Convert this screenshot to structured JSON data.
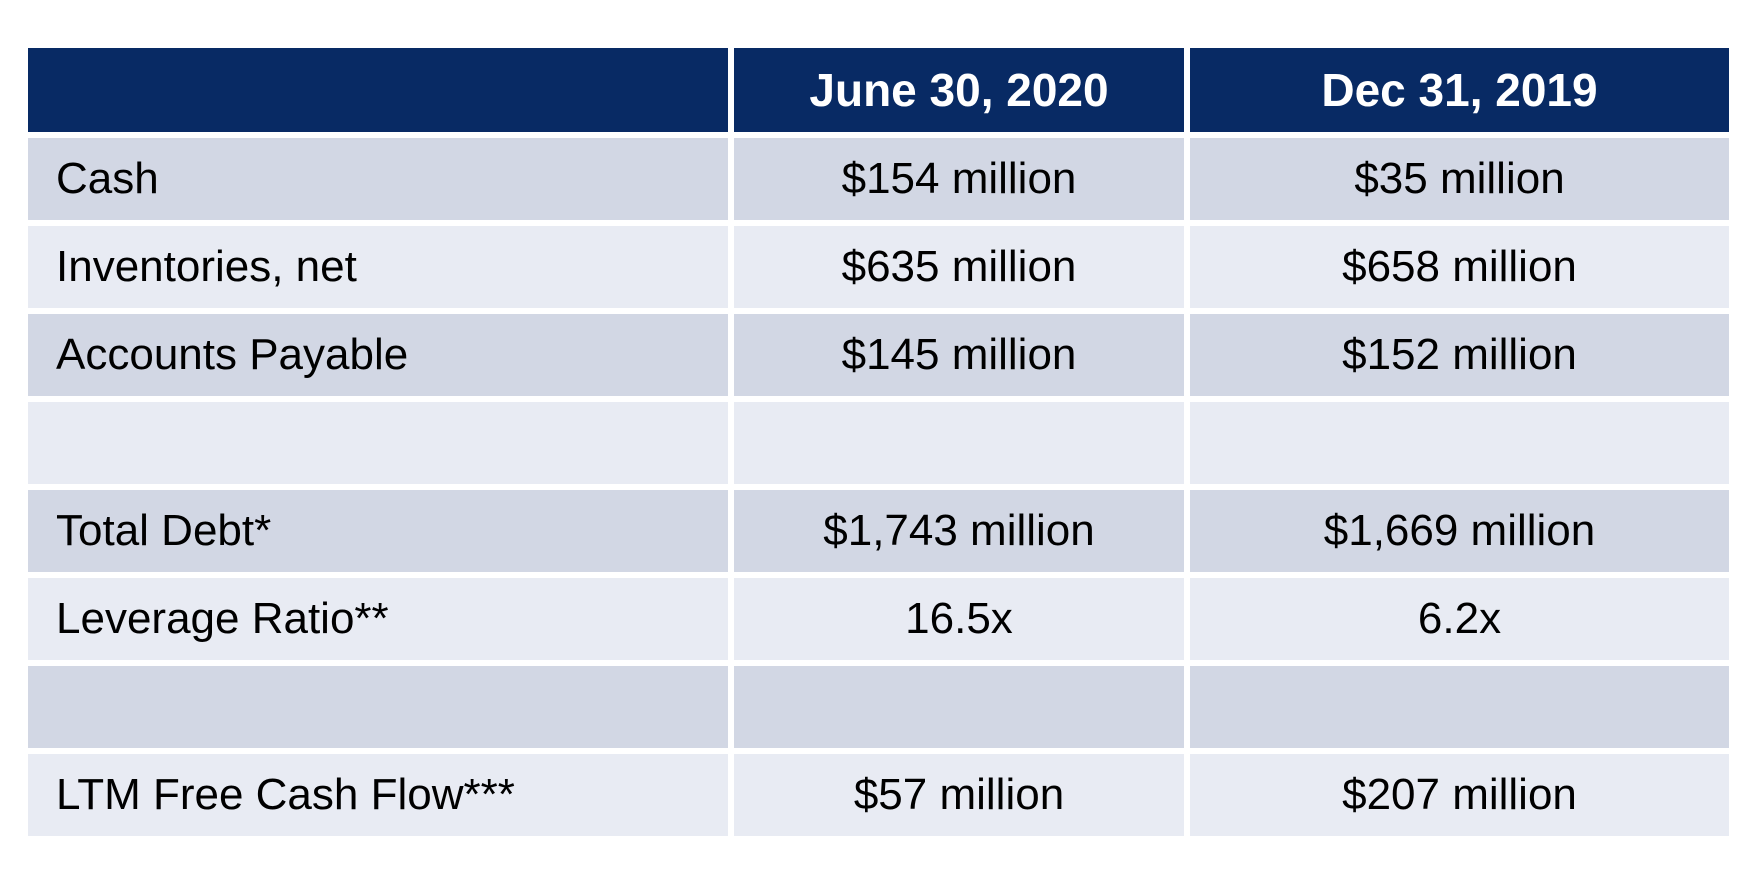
{
  "table": {
    "header_cells": {
      "col0": "",
      "col1": "June 30, 2020",
      "col2": "Dec 31, 2019"
    },
    "rows": [
      {
        "label": "Cash",
        "values": [
          "$154 million",
          "$35 million"
        ]
      },
      {
        "label": "Inventories, net",
        "values": [
          "$635 million",
          "$658 million"
        ]
      },
      {
        "label": "Accounts Payable",
        "values": [
          "$145 million",
          "$152 million"
        ]
      },
      {
        "label": "",
        "values": [
          "",
          ""
        ]
      },
      {
        "label": "Total Debt*",
        "values": [
          "$1,743 million",
          "$1,669 million"
        ]
      },
      {
        "label": "Leverage Ratio**",
        "values": [
          "16.5x",
          "6.2x"
        ]
      },
      {
        "label": "",
        "values": [
          "",
          ""
        ]
      },
      {
        "label": "LTM Free Cash Flow***",
        "values": [
          "$57 million",
          "$207 million"
        ]
      }
    ],
    "colors": {
      "header_bg": "#082A64",
      "header_text": "#FFFFFF",
      "row_band_dark": "#D2D7E4",
      "row_band_light": "#E8EBF3",
      "body_text": "#000000",
      "divider": "#FFFFFF"
    }
  },
  "chart_data": {
    "type": "table",
    "title": "",
    "columns": [
      "",
      "June 30, 2020",
      "Dec 31, 2019"
    ],
    "rows": [
      [
        "Cash",
        "$154 million",
        "$35 million"
      ],
      [
        "Inventories, net",
        "$635 million",
        "$658 million"
      ],
      [
        "Accounts Payable",
        "$145 million",
        "$152 million"
      ],
      [
        "",
        "",
        ""
      ],
      [
        "Total Debt*",
        "$1,743 million",
        "$1,669 million"
      ],
      [
        "Leverage Ratio**",
        "16.5x",
        "6.2x"
      ],
      [
        "",
        "",
        ""
      ],
      [
        "LTM Free Cash Flow***",
        "$57 million",
        "$207 million"
      ]
    ]
  }
}
